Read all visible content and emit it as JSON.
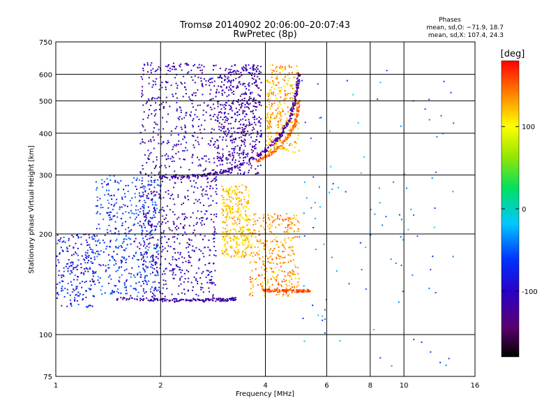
{
  "chart_data": {
    "type": "scatter",
    "title": "Tromsø 20140902 20:06:00–20:07:43",
    "subtitle": "RwPretec (8p)",
    "xlabel": "Frequency [MHz]",
    "ylabel": "Stationary phase Virtual Height [km]",
    "x_scale": "log",
    "y_scale": "log",
    "xlim": [
      1,
      16
    ],
    "ylim": [
      75,
      750
    ],
    "x_ticks": [
      1,
      2,
      4,
      6,
      8,
      10,
      16
    ],
    "y_ticks": [
      75,
      100,
      200,
      300,
      400,
      500,
      600,
      750
    ],
    "grid": true,
    "phase_box": {
      "title": "Phases",
      "line1": "mean, sd,O: −71.9, 18.7",
      "line2": "mean, sd,X: 107.4, 24.3"
    },
    "colorbar": {
      "label": "[deg]",
      "range": [
        -180,
        180
      ],
      "ticks": [
        100,
        0,
        -100
      ],
      "colormap": "rainbow (black → purple → blue → cyan → green → yellow → red)"
    },
    "traces": [
      {
        "kind": "echo",
        "phase": -110,
        "fmin": 1.75,
        "fmax": 2.9,
        "hmin": 125,
        "hmax": 650,
        "density": 1.0
      },
      {
        "kind": "echo",
        "phase": -80,
        "fmin": 1.3,
        "fmax": 2.0,
        "hmin": 130,
        "hmax": 300,
        "density": 0.5
      },
      {
        "kind": "echo",
        "phase": -115,
        "fmin": 2.9,
        "fmax": 3.9,
        "hmin": 300,
        "hmax": 640,
        "density": 0.6
      },
      {
        "kind": "echo",
        "phase": -90,
        "fmin": 1.0,
        "fmax": 1.3,
        "hmin": 120,
        "hmax": 200,
        "density": 0.25
      },
      {
        "kind": "echo",
        "phase": 120,
        "fmin": 3.0,
        "fmax": 3.6,
        "hmin": 170,
        "hmax": 280,
        "density": 0.4
      },
      {
        "kind": "echo",
        "phase": 135,
        "fmin": 3.6,
        "fmax": 5.0,
        "hmin": 130,
        "hmax": 230,
        "density": 0.4
      },
      {
        "kind": "echo",
        "phase": 130,
        "fmin": 4.0,
        "fmax": 5.0,
        "hmin": 350,
        "hmax": 640,
        "density": 0.35
      },
      {
        "kind": "echo",
        "phase": -60,
        "fmin": 5.0,
        "fmax": 14.0,
        "hmin": 80,
        "hmax": 640,
        "density": 0.12
      }
    ],
    "curves": [
      {
        "kind": "O-trace",
        "phase": -120,
        "points": [
          [
            2.0,
            295
          ],
          [
            2.5,
            298
          ],
          [
            3.0,
            305
          ],
          [
            3.5,
            325
          ],
          [
            4.0,
            355
          ],
          [
            4.4,
            390
          ],
          [
            4.7,
            440
          ],
          [
            4.9,
            520
          ],
          [
            5.0,
            600
          ]
        ]
      },
      {
        "kind": "X-trace",
        "phase": 150,
        "points": [
          [
            3.8,
            330
          ],
          [
            4.2,
            350
          ],
          [
            4.6,
            385
          ],
          [
            4.9,
            430
          ],
          [
            5.0,
            500
          ]
        ]
      },
      {
        "kind": "Es-trace",
        "phase": -115,
        "points": [
          [
            1.5,
            128
          ],
          [
            2.0,
            127
          ],
          [
            2.5,
            127
          ],
          [
            3.0,
            127
          ],
          [
            3.3,
            128
          ]
        ]
      },
      {
        "kind": "Es-X",
        "phase": 160,
        "points": [
          [
            3.9,
            136
          ],
          [
            4.4,
            135
          ],
          [
            5.0,
            135
          ],
          [
            5.4,
            135
          ]
        ]
      }
    ]
  }
}
